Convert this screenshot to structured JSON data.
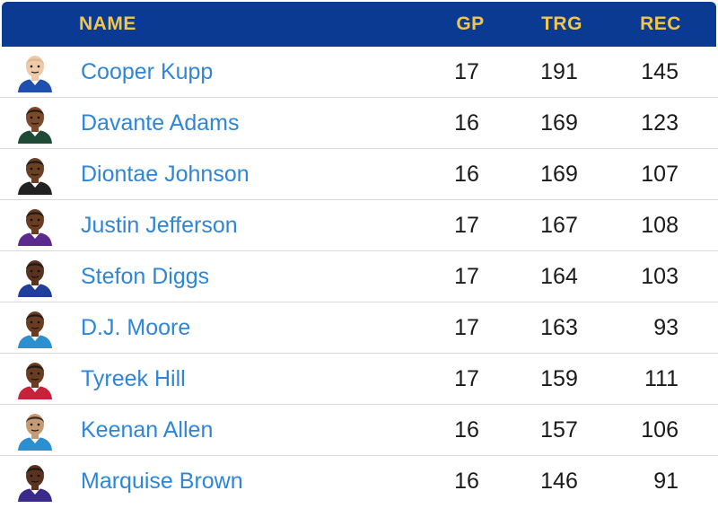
{
  "columns": {
    "name": "NAME",
    "gp": "GP",
    "trg": "TRG",
    "rec": "REC"
  },
  "colors": {
    "header_bg": "#0b3a93",
    "header_text": "#f3c64a",
    "player_link": "#2f86d6"
  },
  "players": [
    {
      "name": "Cooper Kupp",
      "gp": "17",
      "trg": "191",
      "rec": "145",
      "avatar": "player-avatar",
      "skin": "#f0c9a8",
      "jersey": "#1f4fb0",
      "hair": "#d8b890"
    },
    {
      "name": "Davante Adams",
      "gp": "16",
      "trg": "169",
      "rec": "123",
      "avatar": "player-avatar",
      "skin": "#7a4a2a",
      "jersey": "#1f4a36",
      "hair": "#2a1a10"
    },
    {
      "name": "Diontae Johnson",
      "gp": "16",
      "trg": "169",
      "rec": "107",
      "avatar": "player-avatar",
      "skin": "#6b3f22",
      "jersey": "#222222",
      "hair": "#1a1a1a"
    },
    {
      "name": "Justin Jefferson",
      "gp": "17",
      "trg": "167",
      "rec": "108",
      "avatar": "player-avatar",
      "skin": "#6a3d22",
      "jersey": "#5b2a8c",
      "hair": "#1a1a1a"
    },
    {
      "name": "Stefon Diggs",
      "gp": "17",
      "trg": "164",
      "rec": "103",
      "avatar": "player-avatar",
      "skin": "#5a3320",
      "jersey": "#1f3f9a",
      "hair": "#1a1a1a"
    },
    {
      "name": "D.J. Moore",
      "gp": "17",
      "trg": "163",
      "rec": "93",
      "avatar": "player-avatar",
      "skin": "#6a3d22",
      "jersey": "#2b8fd0",
      "hair": "#1a1a1a"
    },
    {
      "name": "Tyreek Hill",
      "gp": "17",
      "trg": "159",
      "rec": "111",
      "avatar": "player-avatar",
      "skin": "#6a3d22",
      "jersey": "#c8213a",
      "hair": "#1a1a1a"
    },
    {
      "name": "Keenan Allen",
      "gp": "16",
      "trg": "157",
      "rec": "106",
      "avatar": "player-avatar",
      "skin": "#c79a76",
      "jersey": "#2b8fd0",
      "hair": "#3a2a1a"
    },
    {
      "name": "Marquise Brown",
      "gp": "16",
      "trg": "146",
      "rec": "91",
      "avatar": "player-avatar",
      "skin": "#5a3320",
      "jersey": "#3a2a8c",
      "hair": "#1a1a1a"
    }
  ]
}
